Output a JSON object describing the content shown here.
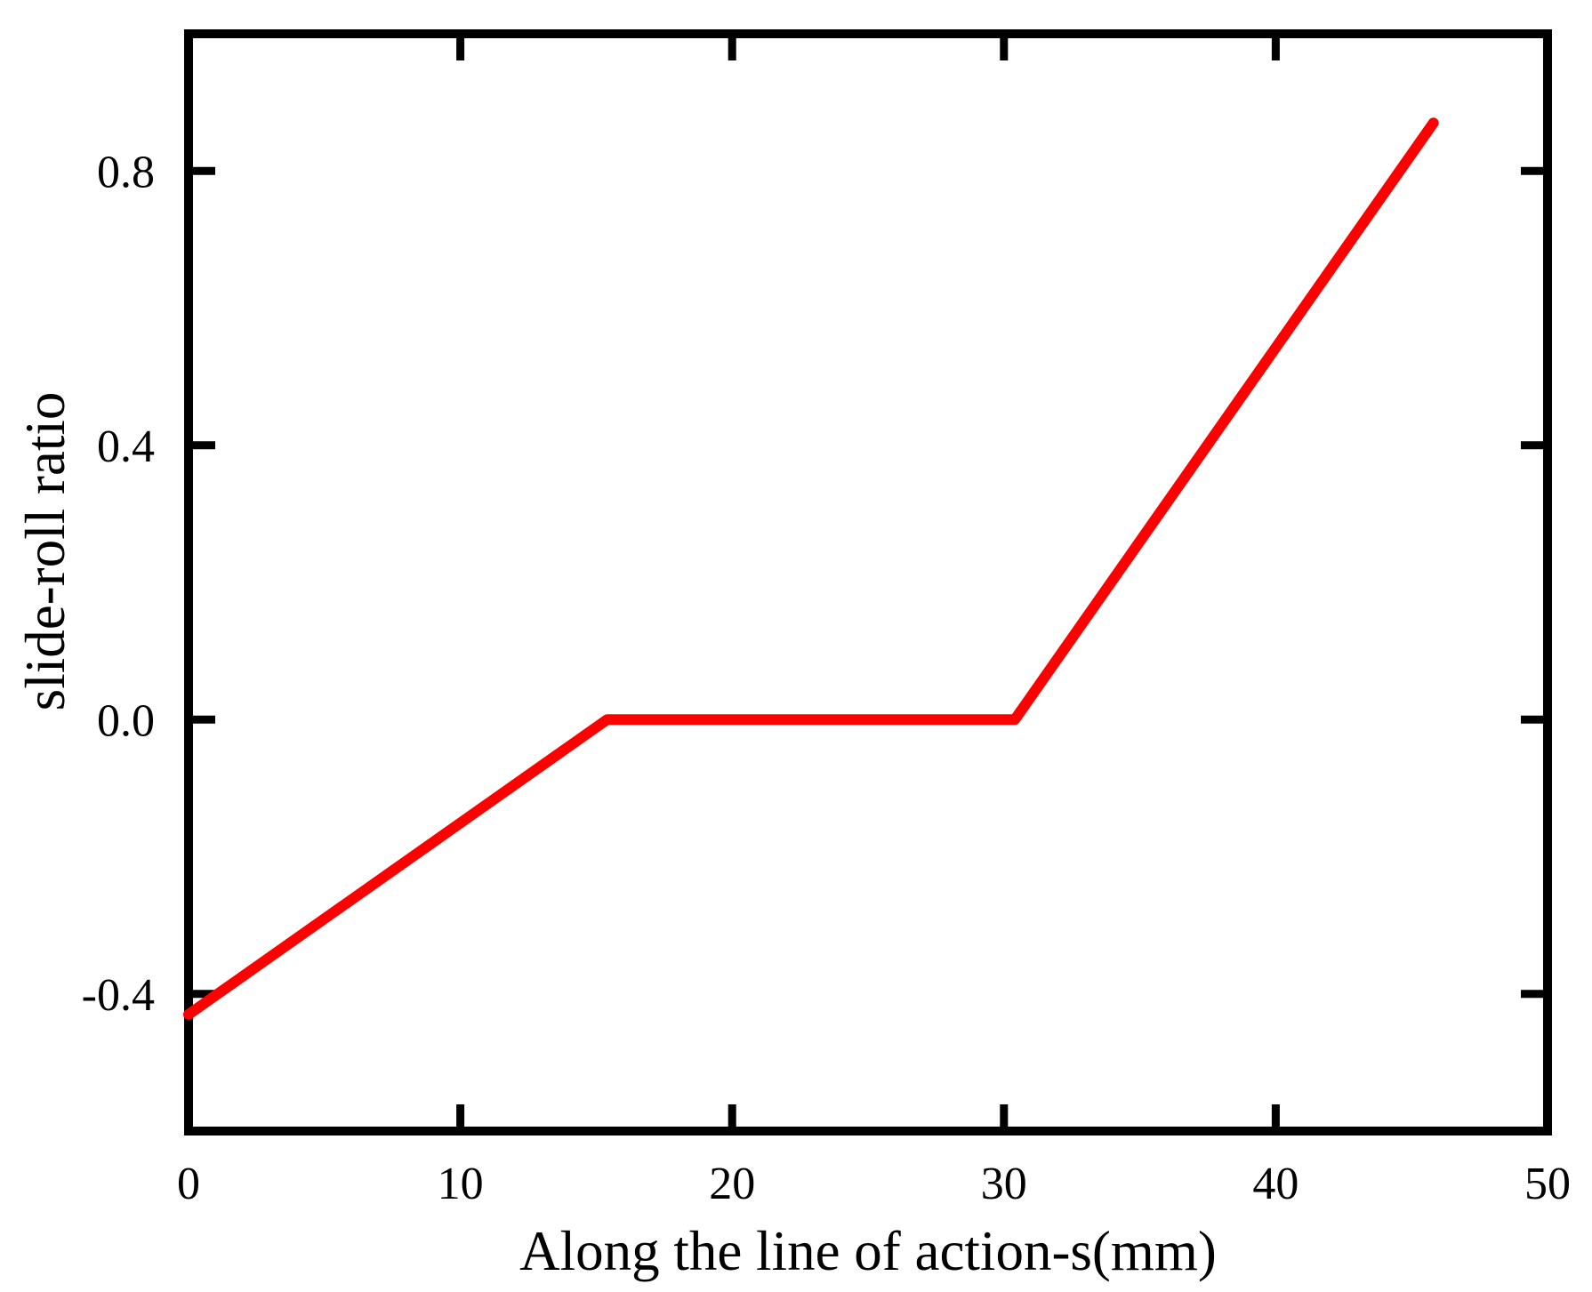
{
  "figure": {
    "background_color": "#ffffff",
    "axis_color": "#000000"
  },
  "chart_data": {
    "type": "line",
    "title": "",
    "xlabel": "Along the line of action-s(mm)",
    "ylabel": "slide-roll ratio",
    "xlim": [
      0,
      50
    ],
    "ylim": [
      -0.6,
      1.0
    ],
    "x_ticks": [
      0,
      10,
      20,
      30,
      40,
      50
    ],
    "x_tick_labels": [
      "0",
      "10",
      "20",
      "30",
      "40",
      "50"
    ],
    "y_ticks": [
      -0.4,
      0.0,
      0.4,
      0.8
    ],
    "y_tick_labels": [
      "-0.4",
      "0.0",
      "0.4",
      "0.8"
    ],
    "grid": false,
    "legend": null,
    "series": [
      {
        "name": "slide-roll ratio",
        "color": "#ff0000",
        "points": [
          [
            0,
            -0.43
          ],
          [
            15.4,
            0.0
          ],
          [
            30.4,
            0.0
          ],
          [
            45.8,
            0.87
          ]
        ]
      }
    ]
  }
}
